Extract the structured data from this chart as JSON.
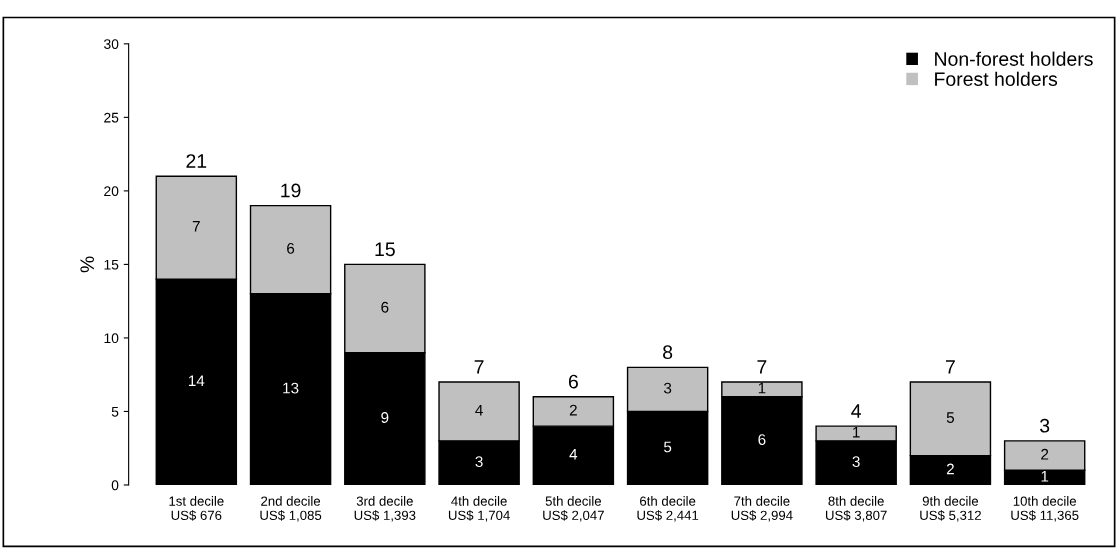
{
  "chart_data": {
    "type": "bar",
    "stacked": true,
    "ylabel": "%",
    "categories": [
      "1st decile\nUS$ 676",
      "2nd decile\nUS$ 1,085",
      "3rd decile\nUS$ 1,393",
      "4th decile\nUS$ 1,704",
      "5th decile\nUS$ 2,047",
      "6th decile\nUS$ 2,441",
      "7th decile\nUS$ 2,994",
      "8th decile\nUS$ 3,807",
      "9th decile\nUS$ 5,312",
      "10th decile\nUS$ 11,365"
    ],
    "series": [
      {
        "name": "Non-forest holders",
        "color": "#000000",
        "values": [
          14,
          13,
          9,
          3,
          4,
          5,
          6,
          3,
          2,
          1
        ]
      },
      {
        "name": "Forest holders",
        "color": "#c0c0c0",
        "values": [
          7,
          6,
          6,
          4,
          2,
          3,
          1,
          1,
          5,
          2
        ]
      }
    ],
    "data_labels": true,
    "totals": [
      "21",
      "19",
      "15",
      "7",
      "6",
      "8",
      "7",
      "4",
      "7",
      "3"
    ],
    "ylim": [
      0,
      30
    ],
    "yticks": [
      0,
      5,
      10,
      15,
      20,
      25,
      30
    ],
    "grid": false,
    "legend": "top right"
  }
}
